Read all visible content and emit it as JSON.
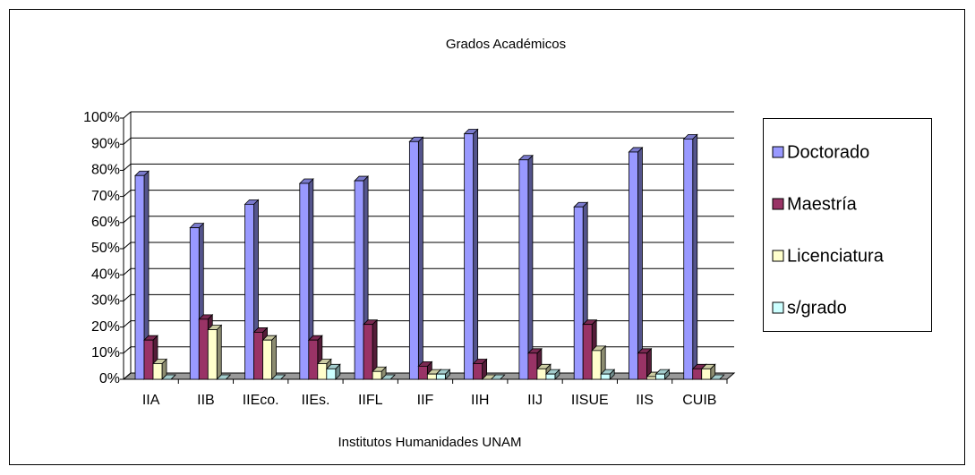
{
  "chart_data": {
    "type": "bar3d",
    "title": "Grados Académicos",
    "xlabel": "Institutos Humanidades UNAM",
    "categories": [
      "IIA",
      "IIB",
      "IIEco.",
      "IIEs.",
      "IIFL",
      "IIF",
      "IIH",
      "IIJ",
      "IISUE",
      "IIS",
      "CUIB"
    ],
    "series": [
      {
        "name": "Doctorado",
        "color": "#9999ff",
        "values": [
          78,
          58,
          67,
          75,
          76,
          91,
          94,
          84,
          66,
          87,
          92
        ]
      },
      {
        "name": "Maestría",
        "color": "#993366",
        "values": [
          15,
          23,
          18,
          15,
          21,
          5,
          6,
          10,
          21,
          10,
          4
        ]
      },
      {
        "name": "Licenciatura",
        "color": "#ffffcc",
        "values": [
          6,
          19,
          15,
          6,
          3,
          2,
          0,
          4,
          11,
          1,
          4
        ]
      },
      {
        "name": "s/grado",
        "color": "#ccffff",
        "values": [
          0,
          0,
          0,
          4,
          0,
          2,
          0,
          2,
          2,
          2,
          0
        ]
      }
    ],
    "ylim": [
      0,
      100
    ],
    "yticks": [
      {
        "value": 0,
        "label": "0%"
      },
      {
        "value": 10,
        "label": "10%"
      },
      {
        "value": 20,
        "label": "20%"
      },
      {
        "value": 30,
        "label": "30%"
      },
      {
        "value": 40,
        "label": "40%"
      },
      {
        "value": 50,
        "label": "50%"
      },
      {
        "value": 60,
        "label": "60%"
      },
      {
        "value": 70,
        "label": "70%"
      },
      {
        "value": 80,
        "label": "80%"
      },
      {
        "value": 90,
        "label": "90%"
      },
      {
        "value": 100,
        "label": "100%"
      }
    ],
    "grid": true,
    "legend": "right"
  }
}
